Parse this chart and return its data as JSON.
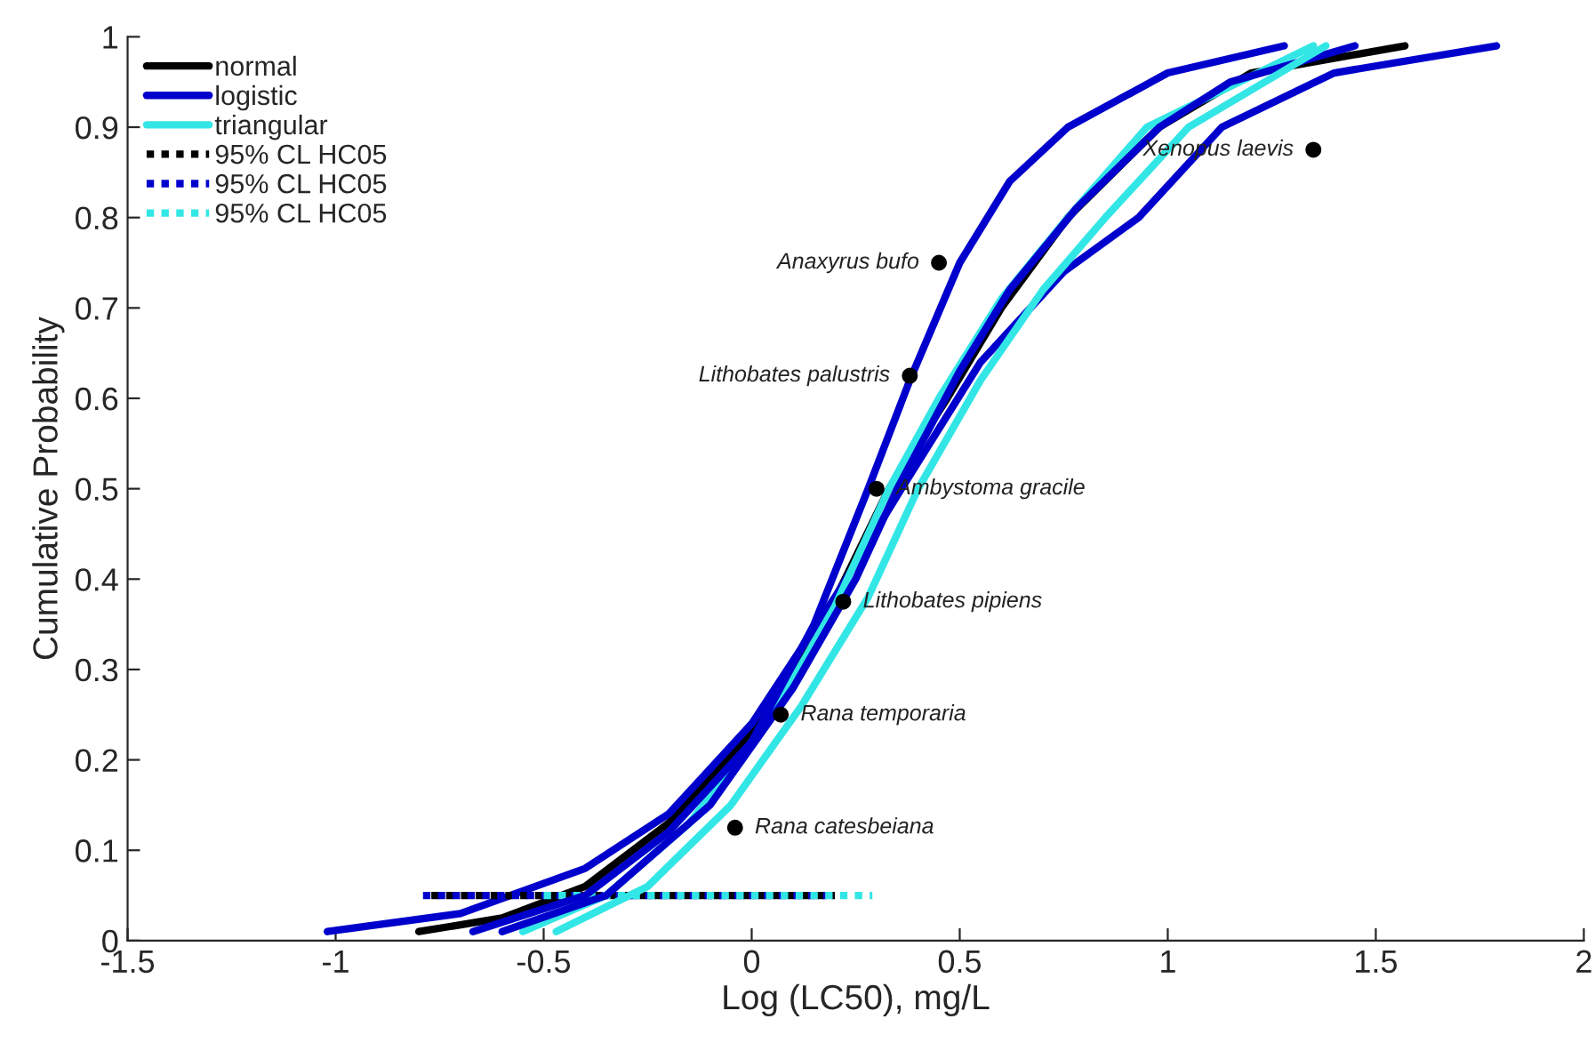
{
  "chart_data": {
    "type": "line",
    "xlabel": "Log (LC50), mg/L",
    "ylabel": "Cumulative Probability",
    "xlim": [
      -1.5,
      2
    ],
    "xticks": [
      -1.5,
      -1,
      -0.5,
      0,
      0.5,
      1,
      1.5,
      2
    ],
    "ylim": [
      0,
      1
    ],
    "yticks": [
      0,
      0.1,
      0.2,
      0.3,
      0.4,
      0.5,
      0.6,
      0.7,
      0.8,
      0.9,
      1
    ],
    "grid": false,
    "legend": "top left",
    "series": [
      {
        "name": "normal",
        "color": "#000000",
        "line_style": "solid",
        "x": [
          -0.8,
          -0.6,
          -0.4,
          -0.2,
          0,
          0.15,
          0.33,
          0.47,
          0.6,
          0.76,
          0.98,
          1.2,
          1.57
        ],
        "values": [
          0.01,
          0.025,
          0.06,
          0.13,
          0.23,
          0.33,
          0.5,
          0.6,
          0.7,
          0.8,
          0.9,
          0.96,
          0.99
        ]
      },
      {
        "name": "logistic",
        "color": "#0000cc",
        "line_style": "solid",
        "x": [
          -1.02,
          -0.7,
          -0.4,
          -0.2,
          0,
          0.2,
          0.36,
          0.55,
          0.75,
          0.93,
          1.13,
          1.4,
          1.79
        ],
        "values": [
          0.01,
          0.03,
          0.08,
          0.14,
          0.24,
          0.38,
          0.5,
          0.64,
          0.74,
          0.8,
          0.9,
          0.96,
          0.99
        ]
      },
      {
        "name": "triangular",
        "color": "#33e6e6",
        "line_style": "solid",
        "x": [
          -0.55,
          -0.35,
          -0.15,
          0.05,
          0.2,
          0.33,
          0.45,
          0.6,
          0.76,
          0.95,
          1.35
        ],
        "values": [
          0.01,
          0.05,
          0.13,
          0.25,
          0.37,
          0.5,
          0.6,
          0.71,
          0.8,
          0.9,
          0.99
        ]
      },
      {
        "name": "95% CL HC05",
        "color": "#000000",
        "type": "line",
        "line_style": "dotted",
        "x": [
          -0.77,
          0.2
        ],
        "values": [
          0.05,
          0.05
        ]
      },
      {
        "name": "95% CL HC05",
        "color": "#0000cc",
        "type": "line",
        "line_style": "dotted",
        "x": [
          -0.79,
          0.18
        ],
        "values": [
          0.05,
          0.05
        ]
      },
      {
        "name": "95% CL HC05",
        "color": "#33e6e6",
        "type": "line",
        "line_style": "dotted",
        "x": [
          -0.5,
          0.29
        ],
        "values": [
          0.05,
          0.05
        ]
      },
      {
        "color": "#0000cc",
        "type": "line",
        "line_style": "solid",
        "x": [
          -0.67,
          -0.4,
          -0.2,
          0,
          0.15,
          0.28,
          0.38,
          0.5,
          0.62,
          0.76,
          1.0,
          1.28
        ],
        "values": [
          0.01,
          0.05,
          0.12,
          0.22,
          0.35,
          0.5,
          0.62,
          0.75,
          0.84,
          0.9,
          0.96,
          0.99
        ]
      },
      {
        "color": "#0000cc",
        "type": "line",
        "line_style": "solid",
        "x": [
          -0.6,
          -0.35,
          -0.1,
          0.1,
          0.25,
          0.35,
          0.5,
          0.62,
          0.78,
          0.98,
          1.15,
          1.45
        ],
        "values": [
          0.01,
          0.05,
          0.15,
          0.28,
          0.4,
          0.5,
          0.63,
          0.72,
          0.81,
          0.9,
          0.95,
          0.99
        ]
      },
      {
        "color": "#33e6e6",
        "type": "line",
        "line_style": "solid",
        "x": [
          -0.47,
          -0.25,
          -0.05,
          0.12,
          0.28,
          0.4,
          0.55,
          0.7,
          0.85,
          1.05,
          1.38
        ],
        "values": [
          0.01,
          0.06,
          0.15,
          0.26,
          0.38,
          0.5,
          0.62,
          0.72,
          0.8,
          0.9,
          0.99
        ]
      },
      {
        "color": "#000000",
        "type": "scatter",
        "marker": "circle",
        "x": [
          -0.04,
          0.07,
          0.22,
          0.3,
          0.38,
          0.45,
          1.35
        ],
        "values": [
          0.125,
          0.25,
          0.375,
          0.5,
          0.625,
          0.75,
          0.875
        ]
      }
    ],
    "annotations": [
      {
        "text": "Rana catesbeiana",
        "x": -0.04,
        "y": 0.125
      },
      {
        "text": "Rana temporaria",
        "x": 0.07,
        "y": 0.25
      },
      {
        "text": "Lithobates pipiens",
        "x": 0.22,
        "y": 0.375
      },
      {
        "text": "Ambystoma gracile",
        "x": 0.3,
        "y": 0.5
      },
      {
        "text": "Lithobates palustris",
        "x": 0.38,
        "y": 0.625
      },
      {
        "text": "Anaxyrus bufo",
        "x": 0.45,
        "y": 0.75
      },
      {
        "text": "Xenopus laevis",
        "x": 1.35,
        "y": 0.875
      }
    ]
  }
}
